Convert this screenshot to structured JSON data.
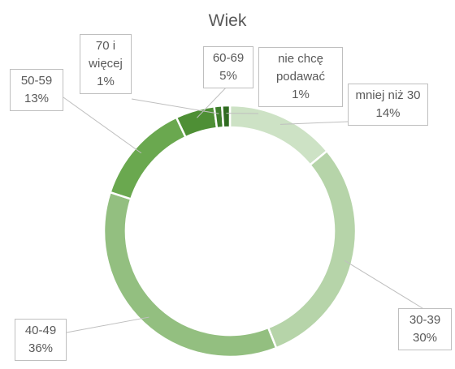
{
  "chart_data": {
    "type": "donut",
    "title": "Wiek",
    "categories": [
      "mniej niż 30",
      "30-39",
      "40-49",
      "50-59",
      "60-69",
      "70 i więcej",
      "nie chcę podawać"
    ],
    "values": [
      14,
      30,
      36,
      13,
      5,
      1,
      1
    ],
    "value_labels": [
      "14%",
      "30%",
      "36%",
      "13%",
      "5%",
      "1%",
      "1%"
    ],
    "colors": [
      "#cde2c5",
      "#b6d4a9",
      "#93bf80",
      "#6aa84f",
      "#4e8f35",
      "#3e7d2b",
      "#2f6b20"
    ]
  }
}
